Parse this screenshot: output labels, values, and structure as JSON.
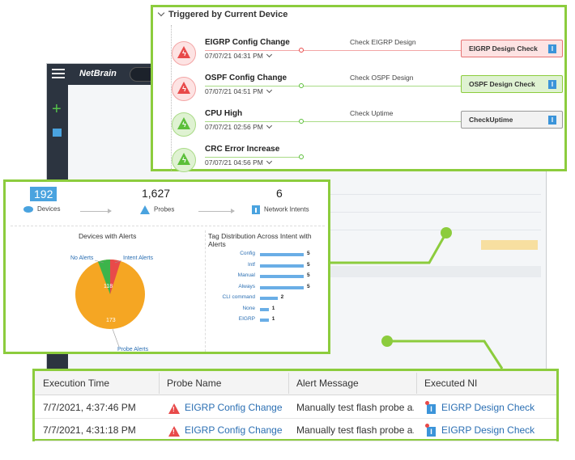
{
  "app": {
    "logo": "NetBrain"
  },
  "triggered_panel": {
    "title": "Triggered by Current Device",
    "events": [
      {
        "name": "EIGRP Config Change",
        "time": "07/07/21 04:31 PM",
        "check": "Check EIGRP Design",
        "ni": "EIGRP Design Check",
        "status": "red"
      },
      {
        "name": "OSPF Config Change",
        "time": "07/07/21 04:51 PM",
        "check": "Check OSPF Design",
        "ni": "OSPF Design Check",
        "status": "green"
      },
      {
        "name": "CPU High",
        "time": "07/07/21 02:56 PM",
        "check": "Check Uptime",
        "ni": "CheckUptime",
        "status": "grey"
      },
      {
        "name": "CRC Error Increase",
        "time": "07/07/21 04:56 PM",
        "check": "",
        "ni": "",
        "status": "none"
      }
    ]
  },
  "dashboard": {
    "stats": [
      {
        "value": "192",
        "label": "Devices"
      },
      {
        "value": "1,627",
        "label": "Probes"
      },
      {
        "value": "6",
        "label": "Network Intents"
      }
    ],
    "pie": {
      "title": "Devices with Alerts",
      "labels": {
        "no_alerts": "No Alerts",
        "intent_alerts": "Intent Alerts",
        "probe_alerts": "Probe Alerts"
      },
      "values": {
        "probe": "173",
        "no_alerts": "118"
      }
    },
    "bars": {
      "title": "Tag Distribution Across Intent with Alerts",
      "items": [
        {
          "label": "Config",
          "value": 5
        },
        {
          "label": "Intf",
          "value": 5
        },
        {
          "label": "Manual",
          "value": 5
        },
        {
          "label": "Always",
          "value": 5
        },
        {
          "label": "CLI command",
          "value": 2
        },
        {
          "label": "None",
          "value": 1
        },
        {
          "label": "EIGRP",
          "value": 1
        }
      ]
    }
  },
  "table": {
    "headers": [
      "Execution Time",
      "Probe Name",
      "Alert Message",
      "Executed NI"
    ],
    "rows": [
      {
        "time": "7/7/2021, 4:37:46 PM",
        "probe": "EIGRP Config Change",
        "message": "Manually test flash probe a...",
        "ni": "EIGRP Design Check"
      },
      {
        "time": "7/7/2021, 4:31:18 PM",
        "probe": "EIGRP Config Change",
        "message": "Manually test flash probe a...",
        "ni": "EIGRP Design Check"
      }
    ]
  },
  "colors": {
    "highlight": "#8ccc3d",
    "alert": "#e84a4a",
    "link": "#2b6fb3",
    "accent": "#4aa3df"
  }
}
